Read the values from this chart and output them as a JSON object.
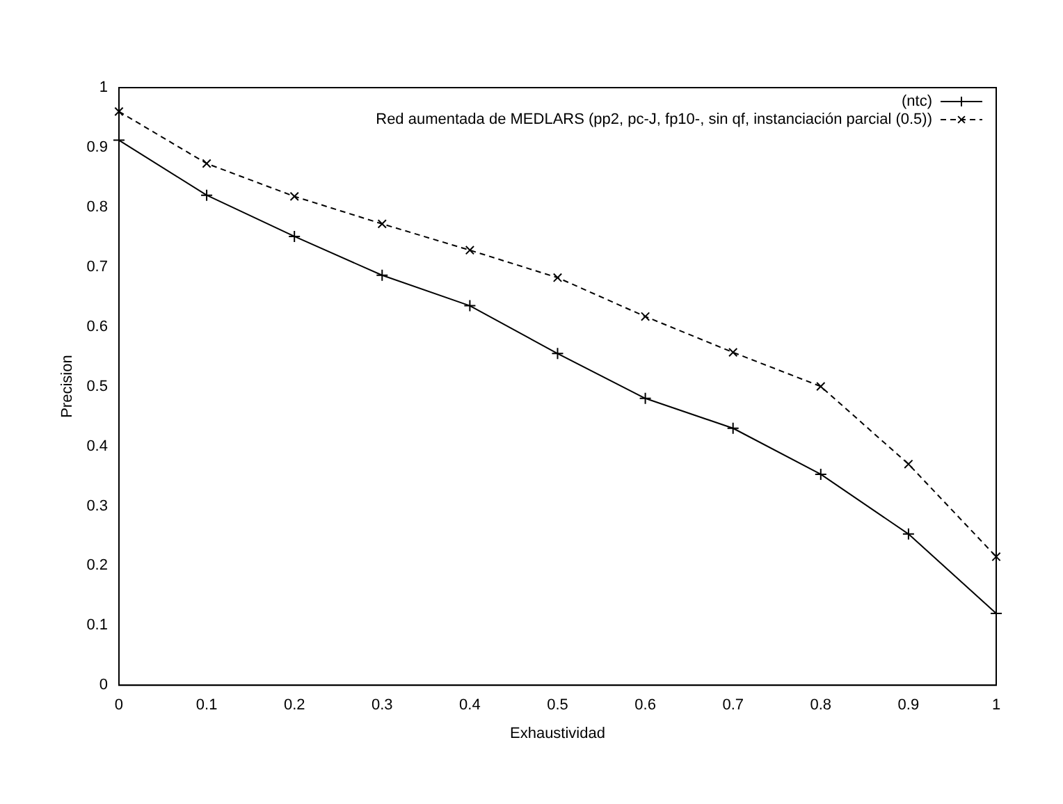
{
  "chart_data": {
    "type": "line",
    "xlabel": "Exhaustividad",
    "ylabel": "Precision",
    "x": [
      0,
      0.1,
      0.2,
      0.3,
      0.4,
      0.5,
      0.6,
      0.7,
      0.8,
      0.9,
      1
    ],
    "series": [
      {
        "name": "(ntc)",
        "color": "#000000",
        "marker": "cross",
        "line_style": "solid",
        "values": [
          0.912,
          0.82,
          0.751,
          0.686,
          0.635,
          0.555,
          0.48,
          0.43,
          0.353,
          0.253,
          0.12
        ]
      },
      {
        "name": "Red aumentada de MEDLARS (pp2, pc-J, fp10-, sin qf, instanciación parcial (0.5))",
        "color": "#000000",
        "marker": "x",
        "line_style": "dashed",
        "values": [
          0.96,
          0.873,
          0.818,
          0.772,
          0.728,
          0.682,
          0.617,
          0.557,
          0.5,
          0.37,
          0.215
        ]
      }
    ],
    "xlim": [
      0,
      1
    ],
    "xticks": [
      0,
      0.1,
      0.2,
      0.3,
      0.4,
      0.5,
      0.6,
      0.7,
      0.8,
      0.9,
      1
    ],
    "ylim": [
      0,
      1
    ],
    "yticks": [
      0,
      0.1,
      0.2,
      0.3,
      0.4,
      0.5,
      0.6,
      0.7,
      0.8,
      0.9,
      1
    ],
    "legend": "top right",
    "grid": false
  }
}
